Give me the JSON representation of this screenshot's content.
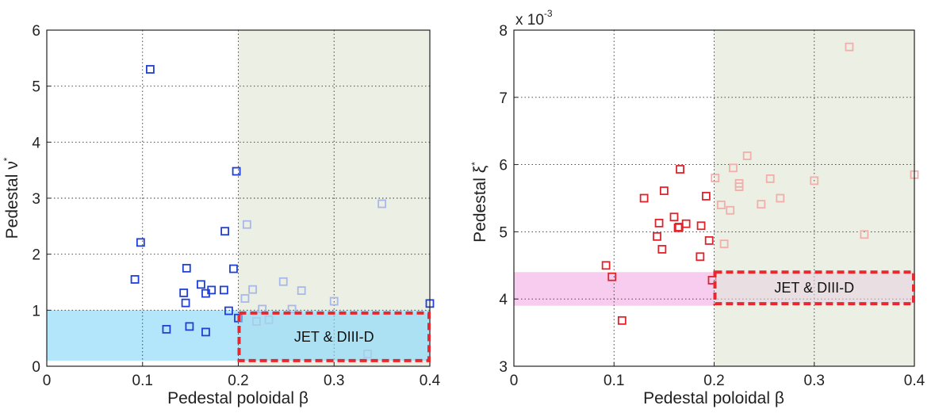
{
  "chart_data": [
    {
      "type": "scatter",
      "xlabel": "Pedestal poloidal β",
      "ylabel_main": "Pedestal ν",
      "ylabel_sup": "*",
      "xlim": [
        0,
        0.4
      ],
      "ylim": [
        0,
        6
      ],
      "xticks": [
        "0",
        "0.1",
        "0.2",
        "0.3",
        "0.4"
      ],
      "xtick_values": [
        0,
        0.1,
        0.2,
        0.3,
        0.4
      ],
      "yticks": [
        "0",
        "1",
        "2",
        "3",
        "4",
        "5",
        "6"
      ],
      "ytick_values": [
        0,
        1,
        2,
        3,
        4,
        5,
        6
      ],
      "grid": true,
      "colors": {
        "strong": "#1f3fd6",
        "light": "#a9b8ea",
        "band": "#b3e6fb",
        "shade": "#ecefe3",
        "box": "#e8272f",
        "box_fill": "#a6dded"
      },
      "band": {
        "x": [
          0,
          0.4
        ],
        "y": [
          0.1,
          1.0
        ]
      },
      "shaded_region": {
        "x": [
          0.2,
          0.4
        ]
      },
      "box_region": {
        "x": [
          0.2,
          0.4
        ],
        "y": [
          0.1,
          0.95
        ],
        "label": "JET & DIII-D"
      },
      "series": [
        {
          "style": "strong",
          "x": [
            0.108,
            0.198,
            0.098,
            0.092,
            0.186,
            0.195,
            0.146,
            0.161,
            0.143,
            0.145,
            0.172,
            0.166,
            0.185,
            0.19,
            0.125,
            0.149,
            0.166,
            0.2,
            0.4
          ],
          "y": [
            5.3,
            3.48,
            2.21,
            1.55,
            2.41,
            1.74,
            1.75,
            1.46,
            1.31,
            1.13,
            1.36,
            1.3,
            1.36,
            0.99,
            0.66,
            0.71,
            0.61,
            0.86,
            1.12
          ]
        },
        {
          "style": "light",
          "x": [
            0.209,
            0.35,
            0.215,
            0.247,
            0.266,
            0.207,
            0.3,
            0.225,
            0.256,
            0.232,
            0.219,
            0.335
          ],
          "y": [
            2.53,
            2.9,
            1.37,
            1.51,
            1.35,
            1.21,
            1.16,
            1.02,
            1.02,
            0.83,
            0.8,
            0.22
          ]
        }
      ]
    },
    {
      "type": "scatter",
      "xlabel": "Pedestal poloidal β",
      "ylabel_main": "Pedestal ξ",
      "ylabel_sup": "*",
      "exponent_label": "x 10",
      "exponent_power": "-3",
      "xlim": [
        0,
        0.4
      ],
      "ylim": [
        3,
        8
      ],
      "xticks": [
        "0",
        "0.1",
        "0.2",
        "0.3",
        "0.4"
      ],
      "xtick_values": [
        0,
        0.1,
        0.2,
        0.3,
        0.4
      ],
      "yticks": [
        "3",
        "4",
        "5",
        "6",
        "7",
        "8"
      ],
      "ytick_values": [
        3,
        4,
        5,
        6,
        7,
        8
      ],
      "grid": true,
      "colors": {
        "strong": "#e0222a",
        "light": "#f2aeaa",
        "band": "#f7ccef",
        "shade": "#ecefe3",
        "box": "#e8272f",
        "box_fill": "#e8cfe0"
      },
      "band": {
        "x": [
          0,
          0.2
        ],
        "y": [
          3.9,
          4.4
        ]
      },
      "shaded_region": {
        "x": [
          0.2,
          0.4
        ]
      },
      "box_region": {
        "x": [
          0.2,
          0.4
        ],
        "y": [
          3.93,
          4.4
        ],
        "label": "JET & DIII-D"
      },
      "series": [
        {
          "style": "strong",
          "x": [
            0.092,
            0.098,
            0.108,
            0.13,
            0.15,
            0.16,
            0.164,
            0.166,
            0.172,
            0.187,
            0.192,
            0.143,
            0.145,
            0.148,
            0.186,
            0.195,
            0.198,
            0.165
          ],
          "y": [
            4.5,
            4.33,
            3.68,
            5.5,
            5.61,
            5.22,
            5.06,
            5.93,
            5.12,
            5.09,
            5.53,
            4.93,
            5.13,
            4.74,
            4.63,
            4.87,
            4.28,
            5.07
          ]
        },
        {
          "style": "light",
          "x": [
            0.201,
            0.207,
            0.21,
            0.216,
            0.219,
            0.225,
            0.225,
            0.233,
            0.247,
            0.256,
            0.266,
            0.3,
            0.335,
            0.35,
            0.4
          ],
          "y": [
            5.8,
            5.4,
            4.82,
            5.32,
            5.95,
            5.72,
            5.67,
            6.13,
            5.41,
            5.79,
            5.5,
            5.76,
            7.75,
            4.96,
            5.85
          ]
        }
      ]
    }
  ]
}
